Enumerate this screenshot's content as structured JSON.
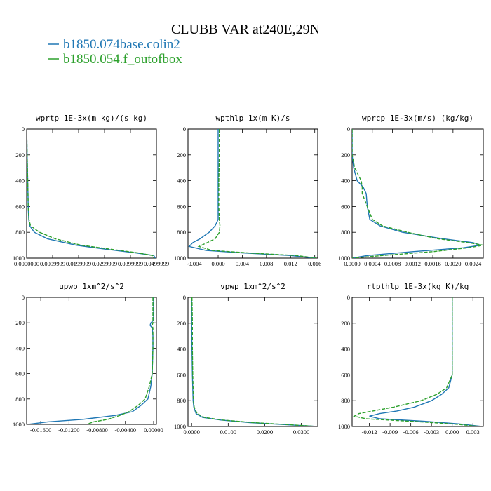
{
  "title": "CLUBB VAR at240E,29N",
  "legend": [
    {
      "name": "b1850.074base.colin2",
      "color": "#1f77b4"
    },
    {
      "name": "b1850.054.f_outofbox",
      "color": "#2ca02c"
    }
  ],
  "chart_data": [
    {
      "type": "line",
      "title": "wprtp  1E-3x(m kg)/(s kg)",
      "xlim": [
        0,
        0.05
      ],
      "ylim": [
        1000,
        0
      ],
      "xticks": [
        0,
        0.01,
        0.02,
        0.03,
        0.04,
        0.05
      ],
      "xtick_labels": [
        "0.0000000",
        "0.0099999",
        "0.0199999",
        "0.0299999",
        "0.0399999",
        "0.0499999"
      ],
      "yticks": [
        0,
        200,
        400,
        600,
        800,
        1000
      ],
      "series": [
        {
          "name": "b1850.074base.colin2",
          "y": [
            0,
            100,
            200,
            300,
            400,
            500,
            600,
            700,
            750,
            800,
            850,
            900,
            930,
            960,
            980,
            1000
          ],
          "x": [
            0,
            0.0001,
            0.0002,
            0.0003,
            0.0004,
            0.0005,
            0.0006,
            0.0008,
            0.0012,
            0.003,
            0.008,
            0.019,
            0.03,
            0.042,
            0.049,
            0.0495
          ]
        },
        {
          "name": "b1850.054.f_outofbox",
          "y": [
            0,
            100,
            200,
            300,
            400,
            500,
            600,
            700,
            750,
            800,
            850,
            900,
            930,
            960,
            980,
            1000
          ],
          "x": [
            0,
            0.0001,
            0.0002,
            0.0003,
            0.0004,
            0.0005,
            0.0006,
            0.0009,
            0.0015,
            0.005,
            0.011,
            0.021,
            0.032,
            0.043,
            0.0485,
            0.049
          ]
        }
      ]
    },
    {
      "type": "line",
      "title": "wpthlp  1x(m K)/s",
      "xlim": [
        -0.005,
        0.0165
      ],
      "ylim": [
        1000,
        0
      ],
      "xticks": [
        -0.004,
        0,
        0.004,
        0.008,
        0.012,
        0.016
      ],
      "xtick_labels": [
        "-0.004",
        "0.000",
        "0.004",
        "0.008",
        "0.012",
        "0.016"
      ],
      "yticks": [
        0,
        200,
        400,
        600,
        800,
        1000
      ],
      "series": [
        {
          "name": "b1850.074base.colin2",
          "y": [
            0,
            200,
            400,
            600,
            700,
            750,
            800,
            850,
            880,
            910,
            940,
            960,
            980,
            1000
          ],
          "x": [
            0,
            0,
            0,
            0,
            0,
            -0.0005,
            -0.0015,
            -0.003,
            -0.0042,
            -0.0048,
            -0.002,
            0.004,
            0.012,
            0.016
          ]
        },
        {
          "name": "b1850.054.f_outofbox",
          "y": [
            0,
            200,
            400,
            600,
            700,
            750,
            800,
            850,
            880,
            910,
            940,
            960,
            980,
            1000
          ],
          "x": [
            0.0002,
            0.0002,
            0.0001,
            0.0001,
            0.0002,
            0.0003,
            0.0002,
            -0.0005,
            -0.0018,
            -0.0032,
            -0.001,
            0.005,
            0.013,
            0.0163
          ]
        }
      ]
    },
    {
      "type": "line",
      "title": "wprcp  1E-3x(m/s) (kg/kg)",
      "xlim": [
        0,
        0.0026
      ],
      "ylim": [
        1000,
        0
      ],
      "xticks": [
        0,
        0.0004,
        0.0008,
        0.0012,
        0.0016,
        0.002,
        0.0024
      ],
      "xtick_labels": [
        "0.0000",
        "0.0004",
        "0.0008",
        "0.0012",
        "0.0016",
        "0.0020",
        "0.0024"
      ],
      "yticks": [
        0,
        200,
        400,
        600,
        800,
        1000
      ],
      "series": [
        {
          "name": "b1850.074base.colin2",
          "y": [
            0,
            200,
            300,
            400,
            450,
            500,
            600,
            700,
            750,
            800,
            850,
            880,
            900,
            920,
            950,
            980,
            1000
          ],
          "x": [
            0,
            0,
            3e-05,
            0.0001,
            0.00022,
            0.00028,
            0.0003,
            0.00035,
            0.00055,
            0.001,
            0.0018,
            0.0024,
            0.00255,
            0.0022,
            0.0012,
            0.0003,
            0
          ]
        },
        {
          "name": "b1850.054.f_outofbox",
          "y": [
            0,
            200,
            300,
            400,
            450,
            500,
            600,
            700,
            750,
            800,
            850,
            880,
            900,
            920,
            950,
            980,
            1000
          ],
          "x": [
            0,
            0,
            5e-05,
            0.00018,
            0.0002,
            0.0002,
            0.0003,
            0.0004,
            0.0006,
            0.0011,
            0.0017,
            0.0023,
            0.0026,
            0.0023,
            0.0016,
            0.0006,
            0
          ]
        }
      ]
    },
    {
      "type": "line",
      "title": "upwp  1xm^2/s^2",
      "xlim": [
        -0.018,
        0.0004
      ],
      "ylim": [
        1000,
        0
      ],
      "xticks": [
        -0.016,
        -0.012,
        -0.008,
        -0.004,
        0
      ],
      "xtick_labels": [
        "-0.01600",
        "-0.01200",
        "-0.00800",
        "-0.00400",
        "0.00000"
      ],
      "yticks": [
        0,
        200,
        400,
        600,
        800,
        1000
      ],
      "series": [
        {
          "name": "b1850.074base.colin2",
          "y": [
            0,
            180,
            200,
            220,
            240,
            300,
            400,
            600,
            700,
            800,
            850,
            900,
            930,
            960,
            980,
            1000
          ],
          "x": [
            0,
            0,
            -0.0004,
            -0.0005,
            -0.0002,
            -0.0001,
            -0.0001,
            -0.0002,
            -0.0004,
            -0.0008,
            -0.0018,
            -0.003,
            -0.0055,
            -0.01,
            -0.015,
            -0.0178
          ]
        },
        {
          "name": "b1850.054.f_outofbox",
          "y": [
            0,
            180,
            200,
            220,
            240,
            300,
            400,
            600,
            700,
            800,
            850,
            900,
            930,
            960,
            980,
            1000
          ],
          "x": [
            -0.0001,
            -0.0001,
            -0.0001,
            -0.0002,
            -0.0001,
            -0.0001,
            -0.0001,
            -0.0002,
            -0.0006,
            -0.0012,
            -0.0022,
            -0.0035,
            -0.0048,
            -0.0065,
            -0.0085,
            -0.0095
          ]
        }
      ]
    },
    {
      "type": "line",
      "title": "vpwp  1xm^2/s^2",
      "xlim": [
        -0.001,
        0.0345
      ],
      "ylim": [
        1000,
        0
      ],
      "xticks": [
        0,
        0.01,
        0.02,
        0.03
      ],
      "xtick_labels": [
        "0.0000",
        "0.0100",
        "0.0200",
        "0.0300"
      ],
      "yticks": [
        0,
        200,
        400,
        600,
        800,
        1000
      ],
      "series": [
        {
          "name": "b1850.074base.colin2",
          "y": [
            0,
            200,
            400,
            600,
            800,
            850,
            900,
            930,
            950,
            970,
            985,
            1000
          ],
          "x": [
            0,
            0,
            0.0001,
            0.0002,
            0.0004,
            0.0006,
            0.0012,
            0.003,
            0.008,
            0.016,
            0.025,
            0.0345
          ]
        },
        {
          "name": "b1850.054.f_outofbox",
          "y": [
            0,
            200,
            400,
            600,
            800,
            850,
            900,
            930,
            950,
            970,
            985,
            1000
          ],
          "x": [
            0.0001,
            0.0002,
            0.0002,
            0.0003,
            0.0005,
            0.0007,
            0.0015,
            0.0035,
            0.0085,
            0.017,
            0.026,
            0.0343
          ]
        }
      ]
    },
    {
      "type": "line",
      "title": "rtpthlp  1E-3x(kg K)/kg",
      "xlim": [
        -0.0145,
        0.0045
      ],
      "ylim": [
        1000,
        0
      ],
      "xticks": [
        -0.012,
        -0.009,
        -0.006,
        -0.003,
        0,
        0.003
      ],
      "xtick_labels": [
        "-0.012",
        "-0.009",
        "-0.006",
        "-0.003",
        "0.000",
        "0.003"
      ],
      "yticks": [
        0,
        200,
        400,
        600,
        800,
        1000
      ],
      "series": [
        {
          "name": "b1850.074base.colin2",
          "y": [
            0,
            200,
            400,
            600,
            700,
            750,
            800,
            850,
            880,
            900,
            920,
            940,
            960,
            980,
            1000
          ],
          "x": [
            0,
            0,
            0,
            0,
            -0.0005,
            -0.0015,
            -0.003,
            -0.0055,
            -0.008,
            -0.0105,
            -0.012,
            -0.0105,
            -0.004,
            0.001,
            0.0043
          ]
        },
        {
          "name": "b1850.054.f_outofbox",
          "y": [
            0,
            200,
            400,
            600,
            700,
            750,
            800,
            850,
            880,
            900,
            920,
            940,
            960,
            980,
            1000
          ],
          "x": [
            0,
            0,
            0,
            0,
            -0.0008,
            -0.0022,
            -0.0045,
            -0.0085,
            -0.0115,
            -0.0135,
            -0.0142,
            -0.0125,
            -0.006,
            0,
            0.004
          ]
        }
      ]
    }
  ]
}
